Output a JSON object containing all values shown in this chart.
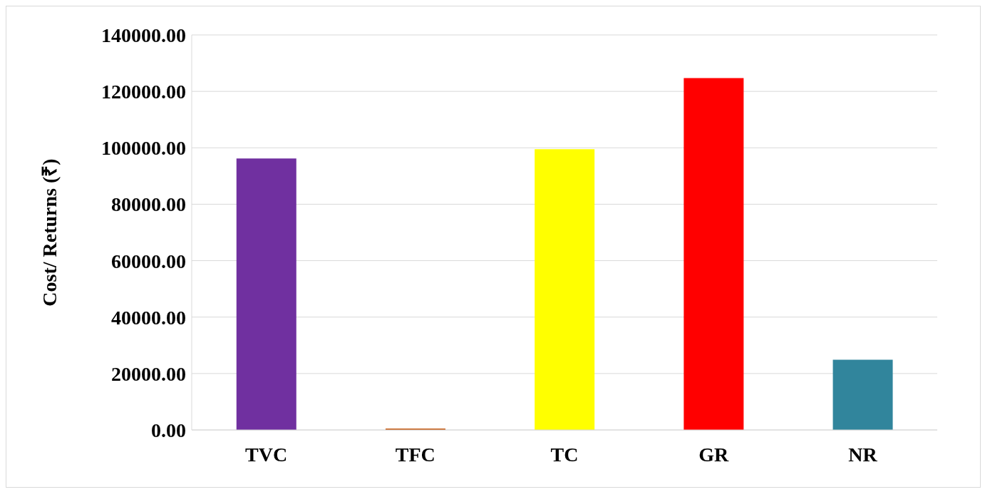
{
  "chart_data": {
    "type": "bar",
    "ylabel": "Cost/ Returns (₹)",
    "categories": [
      "TVC",
      "TFC",
      "TC",
      "GR",
      "NR"
    ],
    "values": [
      96200,
      500,
      99500,
      124700,
      24900
    ],
    "colors": [
      "#7030a0",
      "#c55a11",
      "#ffff00",
      "#ff0000",
      "#31859c"
    ],
    "ylim": [
      0,
      140000
    ],
    "yticks": [
      {
        "value": 0,
        "label": "0.00"
      },
      {
        "value": 20000,
        "label": "20000.00"
      },
      {
        "value": 40000,
        "label": "40000.00"
      },
      {
        "value": 60000,
        "label": "60000.00"
      },
      {
        "value": 80000,
        "label": "80000.00"
      },
      {
        "value": 100000,
        "label": "100000.00"
      },
      {
        "value": 120000,
        "label": "120000.00"
      },
      {
        "value": 140000,
        "label": "140000.00"
      }
    ],
    "grid": "y"
  }
}
